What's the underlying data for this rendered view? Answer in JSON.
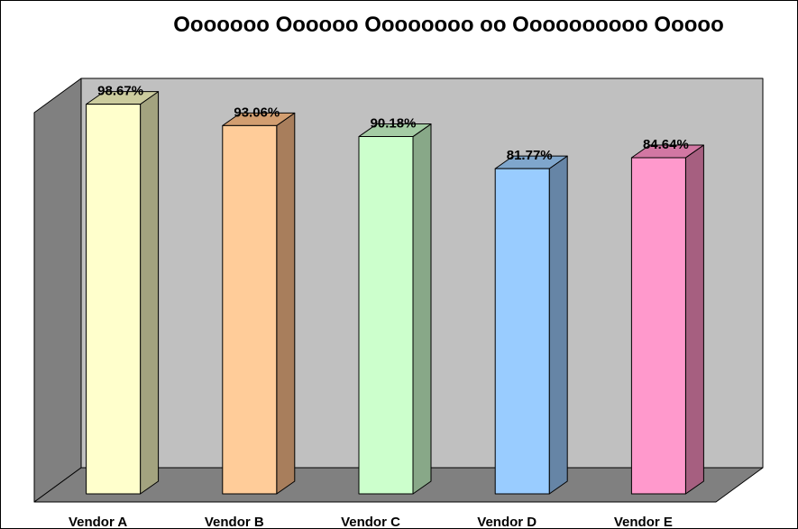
{
  "chart_data": {
    "type": "bar",
    "title": "Ooooooo Oooooo Oooooooo oo Oooooooooo Ooooo",
    "categories": [
      "Vendor A",
      "Vendor B",
      "Vendor C",
      "Vendor D",
      "Vendor E"
    ],
    "values": [
      98.67,
      93.06,
      90.18,
      81.77,
      84.64
    ],
    "value_labels": [
      "98.67%",
      "93.06%",
      "90.18%",
      "81.77%",
      "84.64%"
    ],
    "ylim": [
      0,
      100
    ],
    "grid": false,
    "legend": "none",
    "style": "3d-column",
    "colors": {
      "front": [
        "#FFFFCC",
        "#FFCC99",
        "#CCFFCC",
        "#99CCFF",
        "#FF99CC"
      ],
      "side": [
        "#A3A37F",
        "#A87E5C",
        "#88A888",
        "#6685A6",
        "#A65F80"
      ],
      "top": [
        "#CCCC9E",
        "#D29E70",
        "#A4CCA4",
        "#7FA6CC",
        "#D277A3"
      ],
      "back_wall": "#C0C0C0",
      "side_wall": "#808080",
      "floor": "#808080"
    }
  }
}
